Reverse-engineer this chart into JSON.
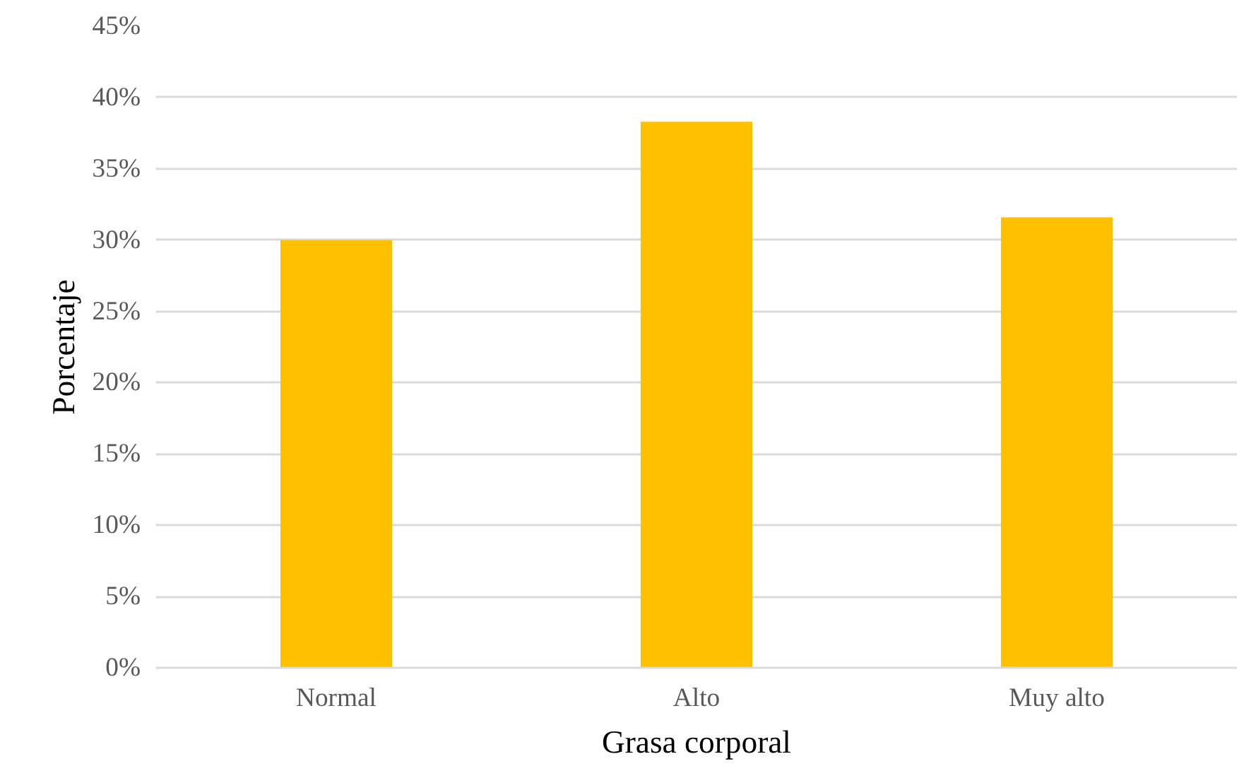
{
  "chart_data": {
    "type": "bar",
    "xlabel": "Grasa corporal",
    "ylabel": "Porcentaje",
    "categories": [
      "Normal",
      "Alto",
      "Muy alto"
    ],
    "values": [
      30,
      38.3,
      31.6
    ],
    "color": "#ffc000",
    "ylim": [
      0,
      45
    ],
    "yticks": [
      {
        "value": 0,
        "label": "0%"
      },
      {
        "value": 5,
        "label": "5%"
      },
      {
        "value": 10,
        "label": "10%"
      },
      {
        "value": 15,
        "label": "15%"
      },
      {
        "value": 20,
        "label": "20%"
      },
      {
        "value": 25,
        "label": "25%"
      },
      {
        "value": 30,
        "label": "30%"
      },
      {
        "value": 35,
        "label": "35%"
      },
      {
        "value": 40,
        "label": "40%"
      },
      {
        "value": 45,
        "label": "45%"
      }
    ],
    "grid": "y"
  }
}
